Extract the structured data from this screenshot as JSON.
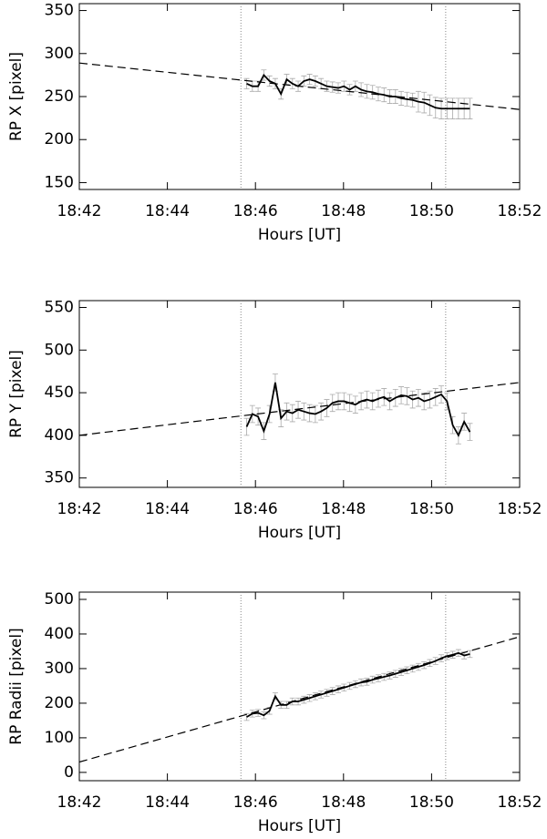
{
  "chart_data": [
    {
      "type": "line",
      "xlabel": "Hours [UT]",
      "ylabel": "RP X [pixel]",
      "xlim": [
        1122,
        1132
      ],
      "xticks": [
        {
          "value": 1122,
          "label": "18:42"
        },
        {
          "value": 1124,
          "label": "18:44"
        },
        {
          "value": 1126,
          "label": "18:46"
        },
        {
          "value": 1128,
          "label": "18:48"
        },
        {
          "value": 1130,
          "label": "18:50"
        },
        {
          "value": 1132,
          "label": "18:52"
        }
      ],
      "ylim": [
        142,
        358
      ],
      "yticks": [
        150,
        200,
        250,
        300,
        350
      ],
      "vlines": [
        1125.67,
        1130.32
      ],
      "x": [
        1125.8,
        1125.93,
        1126.06,
        1126.19,
        1126.32,
        1126.45,
        1126.58,
        1126.71,
        1126.84,
        1126.97,
        1127.1,
        1127.23,
        1127.36,
        1127.49,
        1127.62,
        1127.75,
        1127.88,
        1128.01,
        1128.14,
        1128.27,
        1128.4,
        1128.53,
        1128.66,
        1128.79,
        1128.92,
        1129.05,
        1129.18,
        1129.31,
        1129.44,
        1129.57,
        1129.7,
        1129.83,
        1129.96,
        1130.09,
        1130.22,
        1130.35,
        1130.48,
        1130.61,
        1130.74,
        1130.87
      ],
      "color": "#000000",
      "error_color": "#aaaaaa",
      "values": [
        265,
        262,
        262,
        275,
        268,
        265,
        253,
        270,
        265,
        262,
        268,
        270,
        268,
        265,
        262,
        261,
        260,
        262,
        258,
        262,
        258,
        256,
        255,
        253,
        252,
        250,
        250,
        248,
        247,
        246,
        244,
        243,
        240,
        237,
        236,
        236,
        236,
        236,
        236,
        236
      ],
      "errors": [
        6,
        6,
        6,
        6,
        6,
        6,
        6,
        6,
        6,
        6,
        6,
        6,
        6,
        6,
        6,
        6,
        6,
        6,
        6,
        6,
        8,
        8,
        8,
        8,
        8,
        8,
        8,
        8,
        8,
        8,
        12,
        12,
        12,
        12,
        12,
        12,
        12,
        12,
        12,
        12
      ],
      "fit": {
        "x": [
          1122,
          1132
        ],
        "values": [
          289,
          235
        ]
      }
    },
    {
      "type": "line",
      "xlabel": "Hours [UT]",
      "ylabel": "RP Y [pixel]",
      "xlim": [
        1122,
        1132
      ],
      "xticks": [
        {
          "value": 1122,
          "label": "18:42"
        },
        {
          "value": 1124,
          "label": "18:44"
        },
        {
          "value": 1126,
          "label": "18:46"
        },
        {
          "value": 1128,
          "label": "18:48"
        },
        {
          "value": 1130,
          "label": "18:50"
        },
        {
          "value": 1132,
          "label": "18:52"
        }
      ],
      "ylim": [
        339,
        558
      ],
      "yticks": [
        350,
        400,
        450,
        500,
        550
      ],
      "vlines": [
        1125.67,
        1130.32
      ],
      "x": [
        1125.8,
        1125.93,
        1126.06,
        1126.19,
        1126.32,
        1126.45,
        1126.58,
        1126.71,
        1126.84,
        1126.97,
        1127.1,
        1127.23,
        1127.36,
        1127.49,
        1127.62,
        1127.75,
        1127.88,
        1128.01,
        1128.14,
        1128.27,
        1128.4,
        1128.53,
        1128.66,
        1128.79,
        1128.92,
        1129.05,
        1129.18,
        1129.31,
        1129.44,
        1129.57,
        1129.7,
        1129.83,
        1129.96,
        1130.09,
        1130.22,
        1130.35,
        1130.48,
        1130.61,
        1130.74,
        1130.87
      ],
      "color": "#000000",
      "error_color": "#aaaaaa",
      "values": [
        410,
        425,
        422,
        405,
        425,
        462,
        420,
        428,
        426,
        430,
        428,
        426,
        425,
        428,
        432,
        438,
        440,
        440,
        438,
        436,
        440,
        442,
        440,
        443,
        445,
        440,
        444,
        447,
        446,
        442,
        444,
        440,
        442,
        445,
        448,
        440,
        412,
        400,
        416,
        404
      ],
      "errors": [
        10,
        10,
        10,
        10,
        10,
        10,
        10,
        10,
        10,
        10,
        10,
        10,
        10,
        10,
        10,
        10,
        10,
        10,
        10,
        10,
        10,
        10,
        10,
        10,
        10,
        10,
        10,
        10,
        10,
        10,
        10,
        10,
        10,
        10,
        10,
        10,
        10,
        10,
        10,
        10
      ],
      "fit": {
        "x": [
          1122,
          1132
        ],
        "values": [
          400,
          462
        ]
      }
    },
    {
      "type": "line",
      "xlabel": "Hours [UT]",
      "ylabel": "RP Radii [pixel]",
      "xlim": [
        1122,
        1132
      ],
      "xticks": [
        {
          "value": 1122,
          "label": "18:42"
        },
        {
          "value": 1124,
          "label": "18:44"
        },
        {
          "value": 1126,
          "label": "18:46"
        },
        {
          "value": 1128,
          "label": "18:48"
        },
        {
          "value": 1130,
          "label": "18:50"
        },
        {
          "value": 1132,
          "label": "18:52"
        }
      ],
      "ylim": [
        -24,
        521
      ],
      "yticks": [
        0,
        100,
        200,
        300,
        400,
        500
      ],
      "vlines": [
        1125.67,
        1130.32
      ],
      "x": [
        1125.8,
        1125.93,
        1126.06,
        1126.19,
        1126.32,
        1126.45,
        1126.58,
        1126.71,
        1126.84,
        1126.97,
        1127.1,
        1127.23,
        1127.36,
        1127.49,
        1127.62,
        1127.75,
        1127.88,
        1128.01,
        1128.14,
        1128.27,
        1128.4,
        1128.53,
        1128.66,
        1128.79,
        1128.92,
        1129.05,
        1129.18,
        1129.31,
        1129.44,
        1129.57,
        1129.7,
        1129.83,
        1129.96,
        1130.09,
        1130.22,
        1130.35,
        1130.48,
        1130.61,
        1130.74,
        1130.87
      ],
      "color": "#000000",
      "error_color": "#aaaaaa",
      "values": [
        160,
        170,
        172,
        165,
        178,
        220,
        195,
        195,
        205,
        205,
        210,
        215,
        220,
        225,
        230,
        235,
        240,
        245,
        250,
        255,
        260,
        262,
        268,
        272,
        276,
        280,
        285,
        290,
        295,
        300,
        305,
        310,
        316,
        322,
        330,
        336,
        340,
        345,
        338,
        342
      ],
      "errors": [
        10,
        10,
        10,
        10,
        10,
        10,
        10,
        10,
        10,
        10,
        10,
        10,
        10,
        10,
        10,
        10,
        10,
        10,
        10,
        10,
        10,
        10,
        10,
        10,
        10,
        10,
        10,
        10,
        10,
        10,
        10,
        10,
        10,
        10,
        10,
        10,
        10,
        10,
        10,
        10
      ],
      "fit": {
        "x": [
          1122,
          1132
        ],
        "values": [
          30,
          392
        ]
      }
    }
  ]
}
